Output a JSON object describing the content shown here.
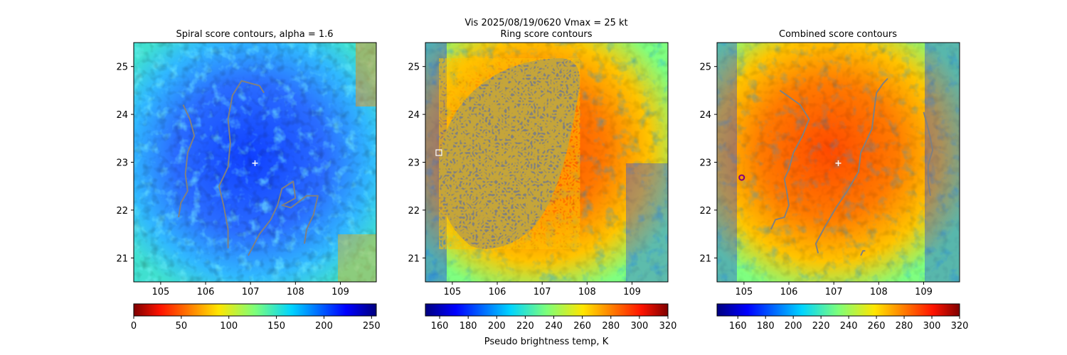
{
  "suptitle_line1": "Vis  2025/08/19/0620    Vmax = 25 kt",
  "cbar_label": "Pseudo brightness temp, K",
  "colors": {
    "contour": "#808080",
    "center": "#ffffff",
    "marker": "#800080"
  },
  "chart_data": [
    {
      "type": "heatmap",
      "title": "Spiral score contours, alpha =  1.6",
      "xlim": [
        104.4,
        109.8
      ],
      "ylim": [
        20.5,
        25.5
      ],
      "xticks": [
        105,
        106,
        107,
        108,
        109
      ],
      "yticks": [
        21,
        22,
        23,
        24,
        25
      ],
      "center": [
        107.1,
        22.98
      ],
      "cbar": {
        "range": [
          0,
          255
        ],
        "ticks": [
          0,
          50,
          100,
          150,
          200,
          250
        ],
        "label": ""
      },
      "contours": [
        [
          [
            105.5,
            24.2
          ],
          [
            105.65,
            23.9
          ],
          [
            105.75,
            23.55
          ],
          [
            105.6,
            23.2
          ],
          [
            105.55,
            22.75
          ],
          [
            105.6,
            22.4
          ],
          [
            105.45,
            22.15
          ],
          [
            105.4,
            21.85
          ]
        ],
        [
          [
            106.5,
            21.2
          ],
          [
            106.5,
            21.6
          ],
          [
            106.4,
            22.1
          ],
          [
            106.3,
            22.5
          ],
          [
            106.5,
            22.9
          ],
          [
            106.55,
            23.4
          ],
          [
            106.5,
            23.9
          ],
          [
            106.6,
            24.4
          ],
          [
            106.8,
            24.7
          ],
          [
            107.2,
            24.6
          ],
          [
            107.3,
            24.45
          ]
        ],
        [
          [
            106.95,
            21.05
          ],
          [
            107.2,
            21.5
          ],
          [
            107.45,
            21.8
          ],
          [
            107.6,
            22.1
          ],
          [
            107.7,
            22.45
          ],
          [
            107.95,
            22.6
          ],
          [
            108.0,
            22.25
          ],
          [
            107.7,
            22.1
          ],
          [
            107.9,
            22.05
          ],
          [
            108.25,
            22.3
          ],
          [
            108.5,
            22.3
          ],
          [
            108.4,
            21.9
          ],
          [
            108.25,
            21.6
          ],
          [
            108.2,
            21.3
          ]
        ]
      ]
    },
    {
      "type": "heatmap",
      "title": "Ring score contours",
      "xlim": [
        104.4,
        109.8
      ],
      "ylim": [
        20.5,
        25.5
      ],
      "xticks": [
        105,
        106,
        107,
        108,
        109
      ],
      "yticks": [
        21,
        22,
        23,
        24,
        25
      ],
      "square_marker": [
        104.7,
        23.2
      ],
      "cbar": {
        "range": [
          150,
          320
        ],
        "ticks": [
          160,
          180,
          200,
          220,
          240,
          260,
          280,
          300,
          320
        ],
        "label": "Pseudo brightness temp, K"
      },
      "contours": []
    },
    {
      "type": "heatmap",
      "title": "Combined score contours",
      "xlim": [
        104.4,
        109.8
      ],
      "ylim": [
        20.5,
        25.5
      ],
      "xticks": [
        105,
        106,
        107,
        108,
        109
      ],
      "yticks": [
        21,
        22,
        23,
        24,
        25
      ],
      "center": [
        107.1,
        22.98
      ],
      "circle_marker": [
        104.95,
        22.68
      ],
      "cbar": {
        "range": [
          145,
          320
        ],
        "ticks": [
          160,
          180,
          200,
          220,
          240,
          260,
          280,
          300,
          320
        ],
        "label": ""
      },
      "contours": [
        [
          [
            105.6,
            21.6
          ],
          [
            105.7,
            21.8
          ],
          [
            105.9,
            21.85
          ],
          [
            106.0,
            22.1
          ],
          [
            105.95,
            22.4
          ],
          [
            105.9,
            22.65
          ],
          [
            106.0,
            22.85
          ],
          [
            106.1,
            23.2
          ],
          [
            106.3,
            23.55
          ],
          [
            106.45,
            23.9
          ],
          [
            106.25,
            24.2
          ],
          [
            105.95,
            24.4
          ],
          [
            105.8,
            24.5
          ]
        ],
        [
          [
            106.65,
            21.1
          ],
          [
            106.6,
            21.3
          ],
          [
            106.8,
            21.65
          ],
          [
            107.05,
            22.05
          ],
          [
            107.3,
            22.4
          ],
          [
            107.55,
            22.8
          ],
          [
            107.6,
            23.2
          ],
          [
            107.85,
            23.7
          ],
          [
            107.9,
            24.1
          ],
          [
            107.95,
            24.45
          ],
          [
            108.1,
            24.65
          ],
          [
            108.2,
            24.75
          ]
        ],
        [
          [
            109.0,
            24.05
          ],
          [
            109.1,
            23.7
          ],
          [
            109.15,
            23.5
          ],
          [
            109.2,
            23.25
          ],
          [
            109.1,
            22.95
          ],
          [
            109.1,
            22.6
          ],
          [
            109.15,
            22.3
          ]
        ],
        [
          [
            107.6,
            21.05
          ],
          [
            107.65,
            21.15
          ],
          [
            107.7,
            21.15
          ]
        ]
      ]
    }
  ]
}
